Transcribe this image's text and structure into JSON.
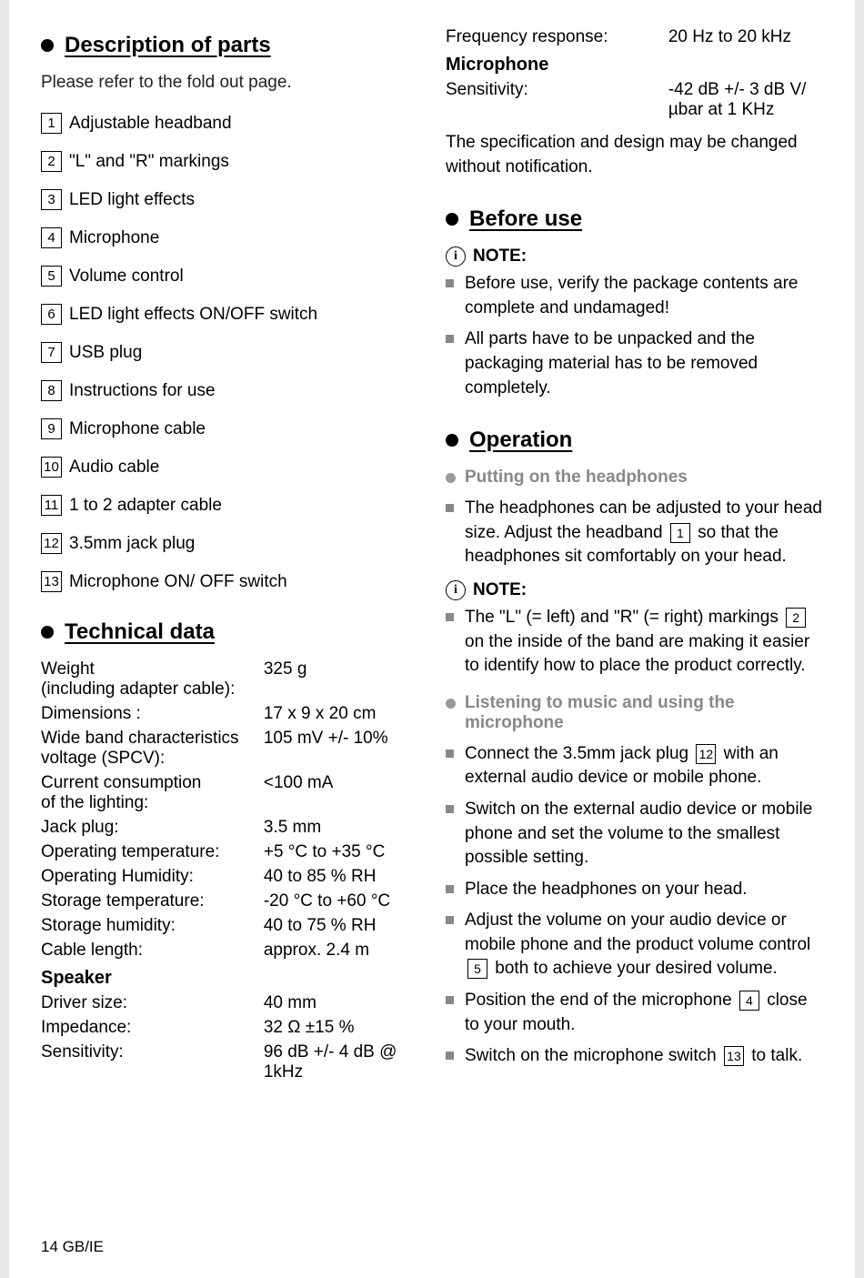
{
  "sections": {
    "description": {
      "title": "Description of parts",
      "intro": "Please refer to the fold out page.",
      "parts": [
        {
          "num": "1",
          "label": "Adjustable headband"
        },
        {
          "num": "2",
          "label": "\"L\" and \"R\" markings"
        },
        {
          "num": "3",
          "label": "LED light effects"
        },
        {
          "num": "4",
          "label": "Microphone"
        },
        {
          "num": "5",
          "label": "Volume control"
        },
        {
          "num": "6",
          "label": "LED light effects ON/OFF switch"
        },
        {
          "num": "7",
          "label": "USB plug"
        },
        {
          "num": "8",
          "label": "Instructions for use"
        },
        {
          "num": "9",
          "label": "Microphone cable"
        },
        {
          "num": "10",
          "label": "Audio cable"
        },
        {
          "num": "11",
          "label": "1 to 2 adapter cable"
        },
        {
          "num": "12",
          "label": "3.5mm jack plug"
        },
        {
          "num": "13",
          "label": "Microphone ON/ OFF switch"
        }
      ]
    },
    "technical": {
      "title": "Technical data",
      "rows": [
        {
          "label": "Weight\n(including adapter cable):",
          "value": "325 g"
        },
        {
          "label": "Dimensions :",
          "value": "17 x 9 x 20 cm"
        },
        {
          "label": "Wide band characteristics voltage (SPCV):",
          "value": "105 mV +/- 10%"
        },
        {
          "label": "Current consumption\nof the lighting:",
          "value": "<100 mA"
        },
        {
          "label": "Jack plug:",
          "value": "3.5 mm"
        },
        {
          "label": "Operating temperature:",
          "value": "+5 °C to +35 °C"
        },
        {
          "label": "Operating Humidity:",
          "value": "40 to 85 % RH"
        },
        {
          "label": "Storage temperature:",
          "value": "-20 °C to +60 °C"
        },
        {
          "label": "Storage humidity:",
          "value": "40 to 75 % RH"
        },
        {
          "label": "Cable length:",
          "value": "approx. 2.4 m"
        }
      ],
      "speaker_head": "Speaker",
      "speaker_rows": [
        {
          "label": "Driver size:",
          "value": "40 mm"
        },
        {
          "label": "Impedance:",
          "value": "32 Ω ±15 %"
        },
        {
          "label": "Sensitivity:",
          "value": "96 dB +/- 4 dB @ 1kHz"
        }
      ],
      "freq_row": {
        "label": "Frequency response:",
        "value": "20 Hz to 20 kHz"
      },
      "mic_head": "Microphone",
      "mic_rows": [
        {
          "label": "Sensitivity:",
          "value": "-42 dB +/- 3 dB V/µbar at 1 KHz"
        }
      ],
      "disclaimer": "The specification and design may be changed without notification."
    },
    "before_use": {
      "title": "Before use",
      "note_label": "NOTE:",
      "items": [
        "Before use, verify the package contents are complete and undamaged!",
        "All parts have to be unpacked and the packaging material has to be removed completely."
      ]
    },
    "operation": {
      "title": "Operation",
      "sub1_title": "Putting on the headphones",
      "sub1_item_pre": "The headphones can be adjusted to your head size. Adjust the headband ",
      "sub1_item_num": "1",
      "sub1_item_post": " so that the headphones sit comfortably on your head.",
      "note_label": "NOTE:",
      "note_item_pre": "The \"L\" (= left) and \"R\" (= right) markings ",
      "note_item_num": "2",
      "note_item_post": " on the inside of the band are making it easier to identify how to place the product correctly.",
      "sub2_title": "Listening to music and using the microphone",
      "item_a_pre": "Connect the 3.5mm jack plug ",
      "item_a_num": "12",
      "item_a_post": " with an external audio device or mobile phone.",
      "item_b": "Switch on the external audio device or mobile phone and set the volume to the smallest possible setting.",
      "item_c": "Place the headphones on your head.",
      "item_d_pre": "Adjust the volume on your audio device or mobile phone and the product volume control ",
      "item_d_num": "5",
      "item_d_post": " both to achieve your desired volume.",
      "item_e_pre": "Position the end of the microphone ",
      "item_e_num": "4",
      "item_e_post": " close to your mouth.",
      "item_f_pre": "Switch on the microphone switch ",
      "item_f_num": "13",
      "item_f_post": " to talk."
    }
  },
  "footer": "14  GB/IE",
  "style": {
    "bg": "#e8e8e8",
    "page_bg": "#ffffff",
    "text": "#000000",
    "gray": "#888888",
    "title_fontsize": 24,
    "body_fontsize": 19
  }
}
